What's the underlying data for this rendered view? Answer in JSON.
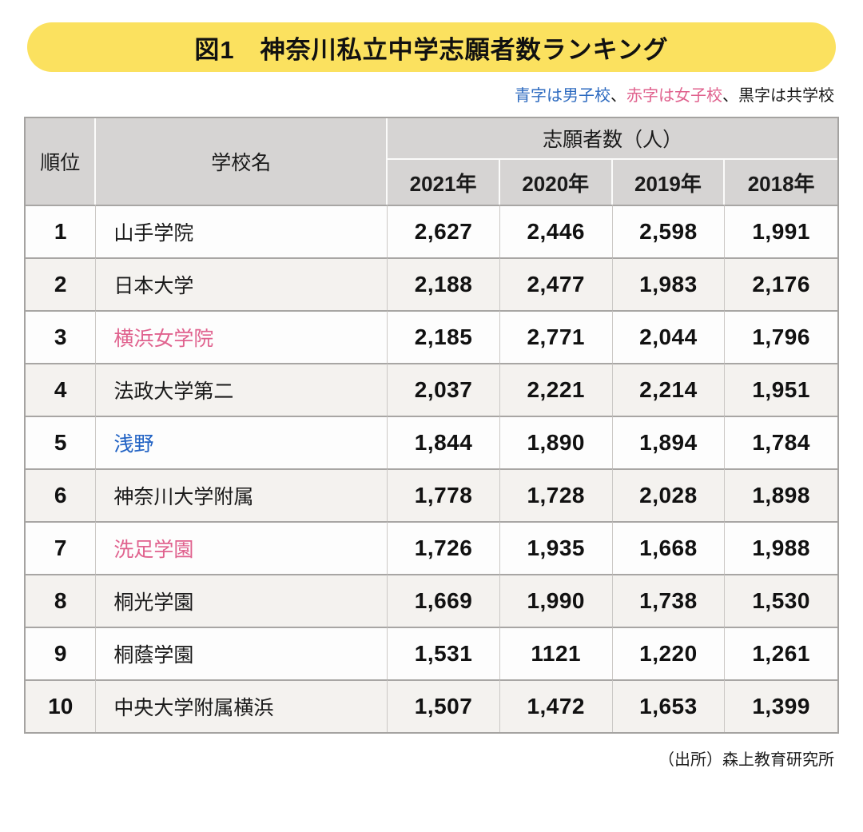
{
  "title": {
    "full": "図1　神奈川私立中学志願者数ランキング"
  },
  "legend": {
    "boys": "青字は男子校",
    "sep1": "、",
    "girls": "赤字は女子校",
    "sep2": "、",
    "coed": "黒字は共学校"
  },
  "colors": {
    "banner_yellow": "#fbe15f",
    "header_gray": "#d6d4d3",
    "row_alt_gray": "#f4f2ef",
    "boys_blue": "#2162c4",
    "girls_pink": "#e0628e",
    "coed_black": "#1a1a1a"
  },
  "table": {
    "headers": {
      "rank": "順位",
      "school": "学校名",
      "applicants_group": "志願者数（人）",
      "years": [
        "2021年",
        "2020年",
        "2019年",
        "2018年"
      ]
    },
    "rows": [
      {
        "rank": "1",
        "school": "山手学院",
        "type_class": "school-coed",
        "v2021": "2,627",
        "v2020": "2,446",
        "v2019": "2,598",
        "v2018": "1,991"
      },
      {
        "rank": "2",
        "school": "日本大学",
        "type_class": "school-coed",
        "v2021": "2,188",
        "v2020": "2,477",
        "v2019": "1,983",
        "v2018": "2,176"
      },
      {
        "rank": "3",
        "school": "横浜女学院",
        "type_class": "school-girls",
        "v2021": "2,185",
        "v2020": "2,771",
        "v2019": "2,044",
        "v2018": "1,796"
      },
      {
        "rank": "4",
        "school": "法政大学第二",
        "type_class": "school-coed",
        "v2021": "2,037",
        "v2020": "2,221",
        "v2019": "2,214",
        "v2018": "1,951"
      },
      {
        "rank": "5",
        "school": "浅野",
        "type_class": "school-boys",
        "v2021": "1,844",
        "v2020": "1,890",
        "v2019": "1,894",
        "v2018": "1,784"
      },
      {
        "rank": "6",
        "school": "神奈川大学附属",
        "type_class": "school-coed",
        "v2021": "1,778",
        "v2020": "1,728",
        "v2019": "2,028",
        "v2018": "1,898"
      },
      {
        "rank": "7",
        "school": "洗足学園",
        "type_class": "school-girls",
        "v2021": "1,726",
        "v2020": "1,935",
        "v2019": "1,668",
        "v2018": "1,988"
      },
      {
        "rank": "8",
        "school": "桐光学園",
        "type_class": "school-coed",
        "v2021": "1,669",
        "v2020": "1,990",
        "v2019": "1,738",
        "v2018": "1,530"
      },
      {
        "rank": "9",
        "school": "桐蔭学園",
        "type_class": "school-coed",
        "v2021": "1,531",
        "v2020": "1121",
        "v2019": "1,220",
        "v2018": "1,261"
      },
      {
        "rank": "10",
        "school": "中央大学附属横浜",
        "type_class": "school-coed",
        "v2021": "1,507",
        "v2020": "1,472",
        "v2019": "1,653",
        "v2018": "1,399"
      }
    ]
  },
  "source": "（出所）森上教育研究所",
  "chart_data": {
    "type": "table",
    "title": "図1　神奈川私立中学志願者数ランキング",
    "legend_note": "青字は男子校、赤字は女子校、黒字は共学校",
    "columns": [
      "順位",
      "学校名",
      "2021年",
      "2020年",
      "2019年",
      "2018年"
    ],
    "rows": [
      [
        1,
        "山手学院",
        2627,
        2446,
        2598,
        1991
      ],
      [
        2,
        "日本大学",
        2188,
        2477,
        1983,
        2176
      ],
      [
        3,
        "横浜女学院",
        2185,
        2771,
        2044,
        1796
      ],
      [
        4,
        "法政大学第二",
        2037,
        2221,
        2214,
        1951
      ],
      [
        5,
        "浅野",
        1844,
        1890,
        1894,
        1784
      ],
      [
        6,
        "神奈川大学附属",
        1778,
        1728,
        2028,
        1898
      ],
      [
        7,
        "洗足学園",
        1726,
        1935,
        1668,
        1988
      ],
      [
        8,
        "桐光学園",
        1669,
        1990,
        1738,
        1530
      ],
      [
        9,
        "桐蔭学園",
        1531,
        1121,
        1220,
        1261
      ],
      [
        10,
        "中央大学附属横浜",
        1507,
        1472,
        1653,
        1399
      ]
    ],
    "school_types": {
      "山手学院": "共学校",
      "日本大学": "共学校",
      "横浜女学院": "女子校",
      "法政大学第二": "共学校",
      "浅野": "男子校",
      "神奈川大学附属": "共学校",
      "洗足学園": "女子校",
      "桐光学園": "共学校",
      "桐蔭学園": "共学校",
      "中央大学附属横浜": "共学校"
    },
    "source": "（出所）森上教育研究所"
  }
}
